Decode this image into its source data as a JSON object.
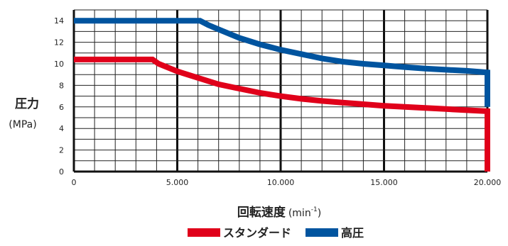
{
  "chart_data": {
    "type": "line",
    "ylabel": "圧力",
    "ylabel_unit": "(MPa)",
    "xlabel_main": "回転速度",
    "xlabel_unit_base": "(min",
    "xlabel_unit_sup": "-1",
    "xlabel_unit_close": ")",
    "xlim": [
      0,
      20000
    ],
    "ylim": [
      0,
      15
    ],
    "x_ticks": [
      0,
      5000,
      10000,
      15000,
      20000
    ],
    "x_tick_labels": [
      "0",
      "5.000",
      "10.000",
      "15.000",
      "20.000"
    ],
    "y_ticks": [
      0,
      2,
      4,
      6,
      8,
      10,
      12,
      14
    ],
    "y_tick_labels": [
      "0",
      "2",
      "4",
      "6",
      "8",
      "10",
      "12",
      "14"
    ],
    "grid": true,
    "legend_position": "bottom-center",
    "series": [
      {
        "name": "スタンダード",
        "color": "#e0001a",
        "points": [
          [
            0,
            10.4
          ],
          [
            3800,
            10.4
          ],
          [
            4100,
            10.0
          ],
          [
            5000,
            9.3
          ],
          [
            6000,
            8.7
          ],
          [
            7000,
            8.1
          ],
          [
            8000,
            7.7
          ],
          [
            9000,
            7.3
          ],
          [
            10000,
            7.0
          ],
          [
            11000,
            6.75
          ],
          [
            12000,
            6.55
          ],
          [
            13000,
            6.4
          ],
          [
            14000,
            6.25
          ],
          [
            15000,
            6.1
          ],
          [
            16000,
            6.0
          ],
          [
            17000,
            5.9
          ],
          [
            18000,
            5.8
          ],
          [
            19000,
            5.7
          ],
          [
            20000,
            5.6
          ],
          [
            20000,
            0
          ]
        ]
      },
      {
        "name": "高圧",
        "color": "#00549f",
        "points": [
          [
            0,
            14.0
          ],
          [
            6100,
            14.0
          ],
          [
            6500,
            13.6
          ],
          [
            7000,
            13.2
          ],
          [
            8000,
            12.4
          ],
          [
            9000,
            11.8
          ],
          [
            10000,
            11.3
          ],
          [
            11000,
            10.9
          ],
          [
            12000,
            10.5
          ],
          [
            13000,
            10.2
          ],
          [
            14000,
            10.0
          ],
          [
            15000,
            9.85
          ],
          [
            16000,
            9.7
          ],
          [
            17000,
            9.55
          ],
          [
            18000,
            9.45
          ],
          [
            19000,
            9.35
          ],
          [
            20000,
            9.2
          ],
          [
            20000,
            6.0
          ]
        ]
      }
    ]
  }
}
